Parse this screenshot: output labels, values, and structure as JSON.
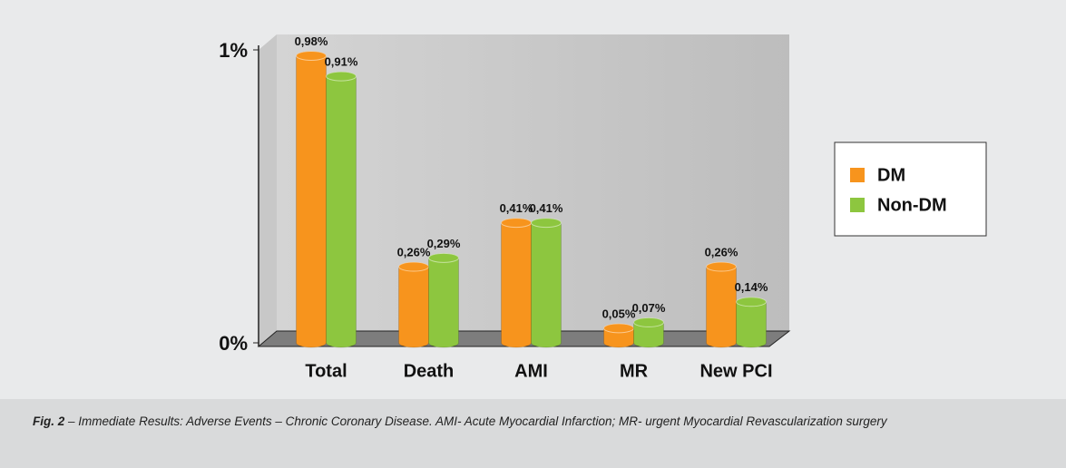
{
  "chart_data": {
    "type": "bar",
    "categories": [
      "Total",
      "Death",
      "AMI",
      "MR",
      "New PCI"
    ],
    "series": [
      {
        "name": "DM",
        "color": "#f7941d",
        "values": [
          0.98,
          0.26,
          0.41,
          0.05,
          0.26
        ],
        "value_labels": [
          "0,98%",
          "0,26%",
          "0,41%",
          "0,05%",
          "0,26%"
        ]
      },
      {
        "name": "Non-DM",
        "color": "#8dc63f",
        "values": [
          0.91,
          0.29,
          0.41,
          0.07,
          0.14
        ],
        "value_labels": [
          "0,91%",
          "0,29%",
          "0,41%",
          "0,07%",
          "0,14%"
        ]
      }
    ],
    "ylim": [
      0,
      1
    ],
    "yticks": [
      {
        "value": 0,
        "label": "0%"
      },
      {
        "value": 1,
        "label": "1%"
      }
    ],
    "legend": "right"
  },
  "caption": {
    "label": "Fig. 2",
    "text": "– Immediate Results: Adverse Events – Chronic Coronary Disease. AMI- Acute Myocardial Infarction; MR- urgent Myocardial Revascularization surgery"
  }
}
